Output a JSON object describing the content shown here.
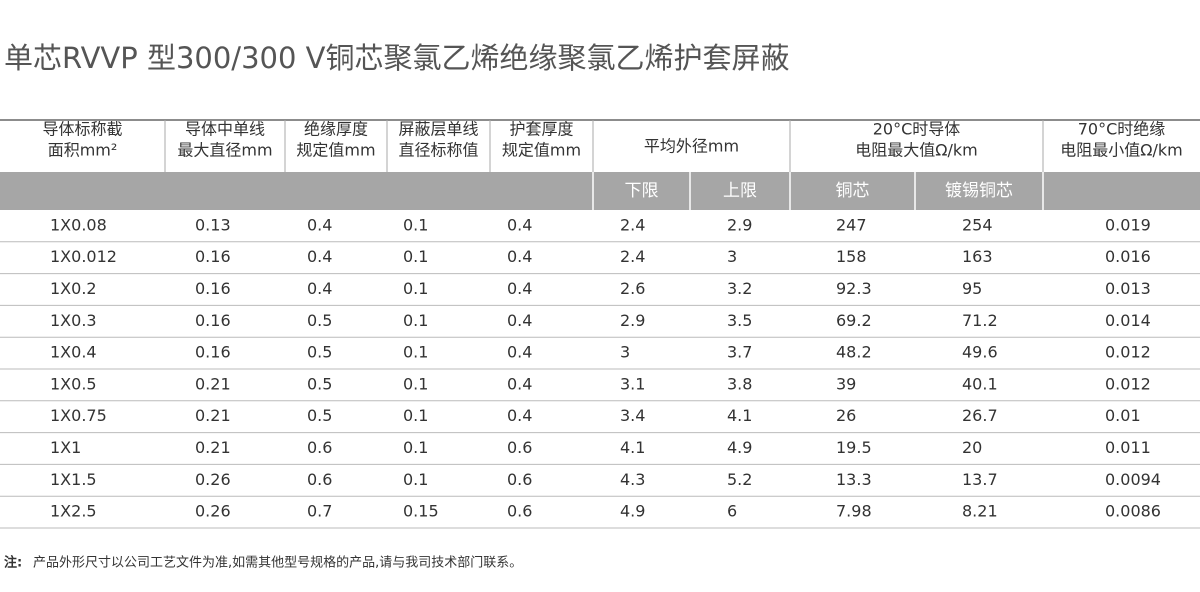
{
  "title": "单芯RVVP 型300/300 V铜芯聚氯乙烯绝缘聚氯乙烯护套屏蔽",
  "table": {
    "header": [
      [
        "导体标称截",
        "面积mm²"
      ],
      [
        "导体中单线",
        "最大直径mm"
      ],
      [
        "绝缘厚度",
        "规定值mm"
      ],
      [
        "屏蔽层单线",
        "直径标称值"
      ],
      [
        "护套厚度",
        "规定值mm"
      ],
      [
        "平均外径mm"
      ],
      [
        "20°C时导体",
        "电阻最大值Ω/km"
      ],
      [
        "70°C时绝缘",
        "电阻最小值Ω/km"
      ]
    ],
    "subheader": [
      "下限",
      "上限",
      "铜芯",
      "镀锡铜芯"
    ],
    "rows": [
      [
        "1X0.08",
        "0.13",
        "0.4",
        "0.1",
        "0.4",
        "2.4",
        "2.9",
        "247",
        "254",
        "0.019"
      ],
      [
        "1X0.012",
        "0.16",
        "0.4",
        "0.1",
        "0.4",
        "2.4",
        "3",
        "158",
        "163",
        "0.016"
      ],
      [
        "1X0.2",
        "0.16",
        "0.4",
        "0.1",
        "0.4",
        "2.6",
        "3.2",
        "92.3",
        "95",
        "0.013"
      ],
      [
        "1X0.3",
        "0.16",
        "0.5",
        "0.1",
        "0.4",
        "2.9",
        "3.5",
        "69.2",
        "71.2",
        "0.014"
      ],
      [
        "1X0.4",
        "0.16",
        "0.5",
        "0.1",
        "0.4",
        "3",
        "3.7",
        "48.2",
        "49.6",
        "0.012"
      ],
      [
        "1X0.5",
        "0.21",
        "0.5",
        "0.1",
        "0.4",
        "3.1",
        "3.8",
        "39",
        "40.1",
        "0.012"
      ],
      [
        "1X0.75",
        "0.21",
        "0.5",
        "0.1",
        "0.4",
        "3.4",
        "4.1",
        "26",
        "26.7",
        "0.01"
      ],
      [
        "1X1",
        "0.21",
        "0.6",
        "0.1",
        "0.6",
        "4.1",
        "4.9",
        "19.5",
        "20",
        "0.011"
      ],
      [
        "1X1.5",
        "0.26",
        "0.6",
        "0.1",
        "0.6",
        "4.3",
        "5.2",
        "13.3",
        "13.7",
        "0.0094"
      ],
      [
        "1X2.5",
        "0.26",
        "0.7",
        "0.15",
        "0.6",
        "4.9",
        "6",
        "7.98",
        "8.21",
        "0.0086"
      ]
    ]
  },
  "note": {
    "label": "注:",
    "text": "产品外形尺寸以公司工艺文件为准,如需其他型号规格的产品,请与我司技术部门联系。"
  }
}
